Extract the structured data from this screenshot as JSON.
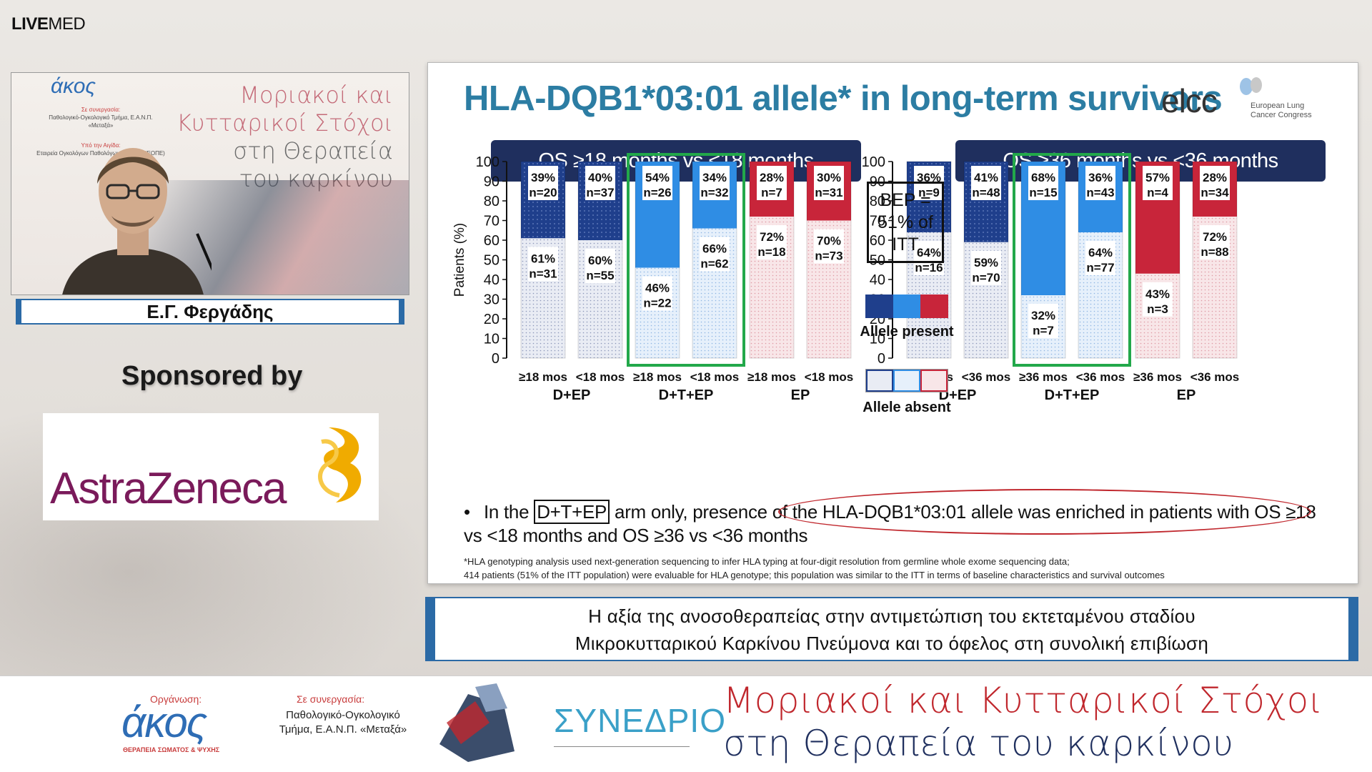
{
  "broadcast": {
    "logo_bold": "LIVE",
    "logo_light": "MED"
  },
  "camera": {
    "backdrop_logo": "άκος",
    "backdrop_coop_label": "Σε συνεργασία:",
    "backdrop_coop_text": "Παθολογικό-Ογκολογικό Τμήμα, Ε.Α.Ν.Π. «Μεταξά»",
    "backdrop_aegis_label": "Υπό την Αιγίδα:",
    "backdrop_aegis_text": "Εταιρεία Ογκολόγων Παθολόγων Ελλάδας (ΕΟΠΕ)",
    "backdrop_title_1": "Μοριακοί και",
    "backdrop_title_2": "Κυτταρικοί Στόχοι",
    "backdrop_title_3": "στη Θεραπεία",
    "backdrop_title_4": "του καρκίνου"
  },
  "speaker": {
    "name": "Ε.Γ. Φεργάδης"
  },
  "sponsor": {
    "label": "Sponsored by",
    "name": "AstraZeneca"
  },
  "slide": {
    "title": "HLA-DQB1*03:01 allele* in long-term survivors",
    "congress_logo": "elcc",
    "congress_name_1": "European Lung",
    "congress_name_2": "Cancer Congress",
    "bep_line1": "BEP =",
    "bep_line2": "51% of",
    "bep_line3": "ITT",
    "legend_present": "Allele present",
    "legend_absent": "Allele absent",
    "bullet_before": "In the ",
    "bullet_boxed": "D+T+EP",
    "bullet_after": " arm only, presence of the HLA-DQB1*03:01 allele was enriched in patients with OS ≥18 vs <18 months and OS ≥36 vs <36 months",
    "footnote_1": "*HLA genotyping analysis used next-generation sequencing to infer HLA typing at four-digit resolution from germline whole exome sequencing data;",
    "footnote_2": "414 patients (51% of the ITT population) were evaluable for HLA genotype; this population was similar to the ITT in terms of baseline characteristics and survival outcomes"
  },
  "chart_data": [
    {
      "type": "bar",
      "stacked": true,
      "title": "OS ≥18 months vs <18 months",
      "ylabel": "Patients (%)",
      "ylim": [
        0,
        100
      ],
      "yticks": [
        0,
        10,
        20,
        30,
        40,
        50,
        60,
        70,
        80,
        90,
        100
      ],
      "categories": [
        "≥18 mos",
        "<18 mos",
        "≥18 mos",
        "<18 mos",
        "≥18 mos",
        "<18 mos"
      ],
      "groups": [
        "D+EP",
        "D+T+EP",
        "EP"
      ],
      "highlighted_group": "D+T+EP",
      "series": [
        {
          "name": "Allele absent",
          "values": [
            61,
            60,
            46,
            66,
            72,
            70
          ],
          "labels": [
            "61%",
            "60%",
            "46%",
            "66%",
            "72%",
            "70%"
          ],
          "n": [
            "n=31",
            "n=55",
            "n=22",
            "n=62",
            "n=18",
            "n=73"
          ]
        },
        {
          "name": "Allele present",
          "values": [
            39,
            40,
            54,
            34,
            28,
            30
          ],
          "labels": [
            "39%",
            "40%",
            "54%",
            "34%",
            "28%",
            "30%"
          ],
          "n": [
            "n=20",
            "n=37",
            "n=26",
            "n=32",
            "n=7",
            "n=31"
          ]
        }
      ],
      "colors": {
        "D+EP": "#1f3f8c",
        "D+T+EP": "#2f8de4",
        "EP": "#c8253a"
      }
    },
    {
      "type": "bar",
      "stacked": true,
      "title": "OS ≥36 months vs <36 months",
      "ylabel": "",
      "ylim": [
        0,
        100
      ],
      "yticks": [
        0,
        10,
        20,
        30,
        40,
        50,
        60,
        70,
        80,
        90,
        100
      ],
      "categories": [
        "≥36 mos",
        "<36 mos",
        "≥36 mos",
        "<36 mos",
        "≥36 mos",
        "<36 mos"
      ],
      "groups": [
        "D+EP",
        "D+T+EP",
        "EP"
      ],
      "highlighted_group": "D+T+EP",
      "series": [
        {
          "name": "Allele absent",
          "values": [
            64,
            59,
            32,
            64,
            43,
            72
          ],
          "labels": [
            "64%",
            "59%",
            "32%",
            "64%",
            "43%",
            "72%"
          ],
          "n": [
            "n=16",
            "n=70",
            "n=7",
            "n=77",
            "n=3",
            "n=88"
          ]
        },
        {
          "name": "Allele present",
          "values": [
            36,
            41,
            68,
            36,
            57,
            28
          ],
          "labels": [
            "36%",
            "41%",
            "68%",
            "36%",
            "57%",
            "28%"
          ],
          "n": [
            "n=9",
            "n=48",
            "n=15",
            "n=43",
            "n=4",
            "n=34"
          ]
        }
      ],
      "colors": {
        "D+EP": "#1f3f8c",
        "D+T+EP": "#2f8de4",
        "EP": "#c8253a"
      }
    }
  ],
  "caption": {
    "line1": "Η αξία της ανοσοθεραπείας στην αντιμετώπιση του εκτεταμένου σταδίου",
    "line2": "Μικροκυτταρικού Καρκίνου Πνεύμονα και το όφελος στη συνολική επιβίωση"
  },
  "banner": {
    "org_label": "Οργάνωση:",
    "org_logo": "άκος",
    "org_sub": "ΘΕΡΑΠΕΙΑ ΣΩΜΑΤΟΣ & ΨΥΧΗΣ",
    "coop_label": "Σε συνεργασία:",
    "coop_text_1": "Παθολογικό-Ογκολογικό",
    "coop_text_2": "Τμήμα, Ε.Α.Ν.Π. «Μεταξά»",
    "congress_word": "ΣΥΝΕΔΡΙΟ",
    "title_line1": "Μοριακοί και Κυτταρικοί Στόχοι",
    "title_line2": "στη Θεραπεία του καρκίνου"
  }
}
